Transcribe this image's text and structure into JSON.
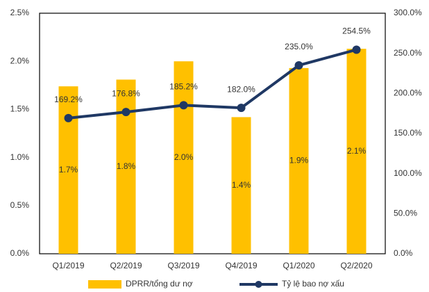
{
  "chart_data": {
    "type": "bar",
    "categories": [
      "Q1/2019",
      "Q2/2019",
      "Q3/2019",
      "Q4/2019",
      "Q1/2020",
      "Q2/2020"
    ],
    "series": [
      {
        "name": "DPRR/tổng dư nợ",
        "type": "bar",
        "color": "#FFC000",
        "values": [
          1.74,
          1.81,
          2.0,
          1.42,
          1.93,
          2.13
        ],
        "value_labels": [
          "1.7%",
          "1.8%",
          "2.0%",
          "1.4%",
          "1.9%",
          "2.1%"
        ]
      },
      {
        "name": "Tỷ lệ bao nợ xấu",
        "type": "line",
        "axis": "y2",
        "color": "#1F3864",
        "values": [
          169.2,
          176.8,
          185.2,
          182.0,
          235.0,
          254.5
        ],
        "value_labels": [
          "169.2%",
          "176.8%",
          "185.2%",
          "182.0%",
          "235.0%",
          "254.5%"
        ]
      }
    ],
    "ylim": [
      0,
      2.5
    ],
    "yticks": [
      {
        "value": 0,
        "label": "0.0%"
      },
      {
        "value": 0.5,
        "label": "0.5%"
      },
      {
        "value": 1,
        "label": "1.0%"
      },
      {
        "value": 1.5,
        "label": "1.5%"
      },
      {
        "value": 2,
        "label": "2.0%"
      },
      {
        "value": 2.5,
        "label": "2.5%"
      }
    ],
    "y2lim": [
      0,
      300
    ],
    "y2ticks": [
      {
        "value": 0,
        "label": "0.0%"
      },
      {
        "value": 50,
        "label": "50.0%"
      },
      {
        "value": 100,
        "label": "100.0%"
      },
      {
        "value": 150,
        "label": "150.0%"
      },
      {
        "value": 200,
        "label": "200.0%"
      },
      {
        "value": 250,
        "label": "250.0%"
      },
      {
        "value": 300,
        "label": "300.0%"
      }
    ],
    "legend": "bottom"
  }
}
